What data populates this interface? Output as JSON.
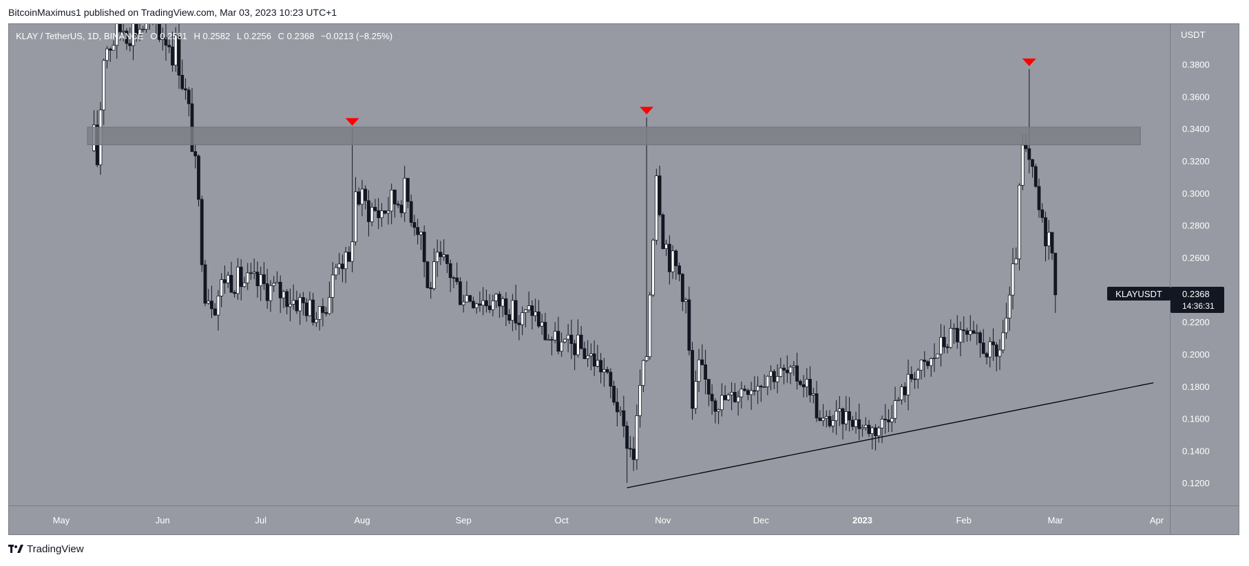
{
  "header": {
    "publish_line": "BitcoinMaximus1 published on TradingView.com, Mar 03, 2023 10:23 UTC+1"
  },
  "footer": {
    "brand": "TradingView",
    "logo_icon": "tradingview-logo-icon"
  },
  "legend": {
    "symbol": "KLAY / TetherUS, 1D, BINANCE",
    "o_label": "O",
    "o_value": "0.2581",
    "h_label": "H",
    "h_value": "0.2582",
    "l_label": "L",
    "l_value": "0.2256",
    "c_label": "C",
    "c_value": "0.2368",
    "change": "−0.0213 (−8.25%)"
  },
  "price_tag": {
    "symbol": "KLAYUSDT",
    "price": "0.2368",
    "countdown": "14:36:31"
  },
  "colors": {
    "background": "#979aa2",
    "candle": "#131722",
    "resistance_zone": "#7c7f87",
    "marker": "#ff0000",
    "trendline": "#000000",
    "frame": "#787b86"
  },
  "chart_data": {
    "type": "candlestick",
    "symbol": "KLAY / TetherUS",
    "interval": "1D",
    "exchange": "BINANCE",
    "y_axis_unit": "USDT",
    "y_ticks": [
      "0.3800",
      "0.3600",
      "0.3400",
      "0.3200",
      "0.3000",
      "0.2800",
      "0.2600",
      "0.2400",
      "0.2200",
      "0.2000",
      "0.1800",
      "0.1600",
      "0.1400",
      "0.1200"
    ],
    "ylim": [
      0.106,
      0.405
    ],
    "x_ticks": [
      "May",
      "Jun",
      "Jul",
      "Aug",
      "Sep",
      "Oct",
      "Nov",
      "Dec",
      "2023",
      "Feb",
      "Mar",
      "Apr"
    ],
    "x_tick_dates": [
      "2022-05-01",
      "2022-06-01",
      "2022-07-01",
      "2022-08-01",
      "2022-09-01",
      "2022-10-01",
      "2022-11-01",
      "2022-12-01",
      "2023-01-01",
      "2023-02-01",
      "2023-03-01",
      "2023-04-01"
    ],
    "xlim": [
      "2022-04-15",
      "2023-04-05"
    ],
    "current_price": 0.2368,
    "resistance_zone": [
      0.33,
      0.341
    ],
    "resistance_rejections": [
      {
        "date": "2022-07-29",
        "price": 0.344
      },
      {
        "date": "2022-10-27",
        "price": 0.351
      },
      {
        "date": "2023-02-21",
        "price": 0.381
      }
    ],
    "ascending_support": {
      "from": {
        "date": "2022-10-21",
        "price": 0.117
      },
      "to": {
        "date": "2023-03-31",
        "price": 0.1822
      }
    },
    "price_path": [
      [
        "2022-05-11",
        0.333
      ],
      [
        "2022-05-12",
        0.32
      ],
      [
        "2022-05-14",
        0.39
      ],
      [
        "2022-05-20",
        0.405
      ],
      [
        "2022-05-28",
        0.405
      ],
      [
        "2022-06-02",
        0.4
      ],
      [
        "2022-06-06",
        0.385
      ],
      [
        "2022-06-08",
        0.36
      ],
      [
        "2022-06-10",
        0.335
      ],
      [
        "2022-06-12",
        0.29
      ],
      [
        "2022-06-14",
        0.24
      ],
      [
        "2022-06-17",
        0.232
      ],
      [
        "2022-06-20",
        0.248
      ],
      [
        "2022-06-25",
        0.245
      ],
      [
        "2022-07-01",
        0.243
      ],
      [
        "2022-07-05",
        0.24
      ],
      [
        "2022-07-10",
        0.235
      ],
      [
        "2022-07-15",
        0.23
      ],
      [
        "2022-07-19",
        0.222
      ],
      [
        "2022-07-22",
        0.238
      ],
      [
        "2022-07-25",
        0.262
      ],
      [
        "2022-07-28",
        0.253
      ],
      [
        "2022-07-30",
        0.3
      ],
      [
        "2022-08-02",
        0.292
      ],
      [
        "2022-08-06",
        0.288
      ],
      [
        "2022-08-10",
        0.294
      ],
      [
        "2022-08-14",
        0.3
      ],
      [
        "2022-08-17",
        0.285
      ],
      [
        "2022-08-19",
        0.277
      ],
      [
        "2022-08-21",
        0.24
      ],
      [
        "2022-08-24",
        0.255
      ],
      [
        "2022-08-27",
        0.255
      ],
      [
        "2022-08-31",
        0.238
      ],
      [
        "2022-09-05",
        0.235
      ],
      [
        "2022-09-10",
        0.232
      ],
      [
        "2022-09-14",
        0.232
      ],
      [
        "2022-09-18",
        0.22
      ],
      [
        "2022-09-22",
        0.228
      ],
      [
        "2022-09-26",
        0.212
      ],
      [
        "2022-10-01",
        0.205
      ],
      [
        "2022-10-06",
        0.205
      ],
      [
        "2022-10-10",
        0.198
      ],
      [
        "2022-10-14",
        0.19
      ],
      [
        "2022-10-18",
        0.167
      ],
      [
        "2022-10-21",
        0.145
      ],
      [
        "2022-10-23",
        0.137
      ],
      [
        "2022-10-25",
        0.18
      ],
      [
        "2022-10-27",
        0.2
      ],
      [
        "2022-10-28",
        0.24
      ],
      [
        "2022-10-30",
        0.317
      ],
      [
        "2022-11-01",
        0.275
      ],
      [
        "2022-11-03",
        0.26
      ],
      [
        "2022-11-06",
        0.25
      ],
      [
        "2022-11-08",
        0.232
      ],
      [
        "2022-11-09",
        0.2
      ],
      [
        "2022-11-10",
        0.165
      ],
      [
        "2022-11-12",
        0.192
      ],
      [
        "2022-11-17",
        0.17
      ],
      [
        "2022-11-22",
        0.173
      ],
      [
        "2022-11-26",
        0.18
      ],
      [
        "2022-11-30",
        0.182
      ],
      [
        "2022-12-03",
        0.188
      ],
      [
        "2022-12-07",
        0.188
      ],
      [
        "2022-12-12",
        0.186
      ],
      [
        "2022-12-16",
        0.18
      ],
      [
        "2022-12-19",
        0.157
      ],
      [
        "2022-12-24",
        0.16
      ],
      [
        "2022-12-28",
        0.162
      ],
      [
        "2023-01-01",
        0.155
      ],
      [
        "2023-01-05",
        0.153
      ],
      [
        "2023-01-08",
        0.16
      ],
      [
        "2023-01-12",
        0.172
      ],
      [
        "2023-01-17",
        0.19
      ],
      [
        "2023-01-21",
        0.192
      ],
      [
        "2023-01-25",
        0.205
      ],
      [
        "2023-01-29",
        0.213
      ],
      [
        "2023-02-03",
        0.208
      ],
      [
        "2023-02-07",
        0.205
      ],
      [
        "2023-02-11",
        0.197
      ],
      [
        "2023-02-15",
        0.23
      ],
      [
        "2023-02-17",
        0.265
      ],
      [
        "2023-02-19",
        0.325
      ],
      [
        "2023-02-21",
        0.315
      ],
      [
        "2023-02-23",
        0.3
      ],
      [
        "2023-02-25",
        0.278
      ],
      [
        "2023-02-27",
        0.275
      ],
      [
        "2023-02-28",
        0.2581
      ],
      [
        "2023-03-01",
        0.2368
      ]
    ]
  }
}
